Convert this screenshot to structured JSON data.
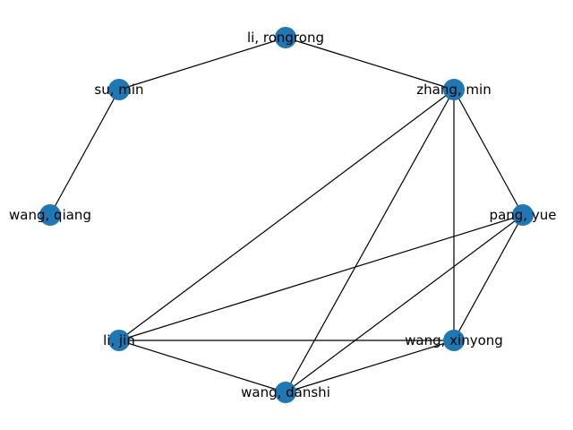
{
  "graph": {
    "nodes": [
      {
        "id": "li-rongrong",
        "label": "li, rongrong"
      },
      {
        "id": "su-min",
        "label": "su, min"
      },
      {
        "id": "zhang-min",
        "label": "zhang, min"
      },
      {
        "id": "wang-qiang",
        "label": "wang, qiang"
      },
      {
        "id": "pang-yue",
        "label": "pang, yue"
      },
      {
        "id": "li-jin",
        "label": "li, jin"
      },
      {
        "id": "wang-xinyong",
        "label": "wang, xinyong"
      },
      {
        "id": "wang-danshi",
        "label": "wang, danshi"
      }
    ],
    "edges": [
      [
        "li-rongrong",
        "su-min"
      ],
      [
        "li-rongrong",
        "zhang-min"
      ],
      [
        "su-min",
        "wang-qiang"
      ],
      [
        "zhang-min",
        "pang-yue"
      ],
      [
        "zhang-min",
        "li-jin"
      ],
      [
        "zhang-min",
        "wang-danshi"
      ],
      [
        "zhang-min",
        "wang-xinyong"
      ],
      [
        "pang-yue",
        "li-jin"
      ],
      [
        "pang-yue",
        "wang-danshi"
      ],
      [
        "pang-yue",
        "wang-xinyong"
      ],
      [
        "li-jin",
        "wang-xinyong"
      ],
      [
        "li-jin",
        "wang-danshi"
      ],
      [
        "wang-danshi",
        "wang-xinyong"
      ]
    ],
    "node_color": "#1f77b4",
    "edge_color": "#000000"
  }
}
